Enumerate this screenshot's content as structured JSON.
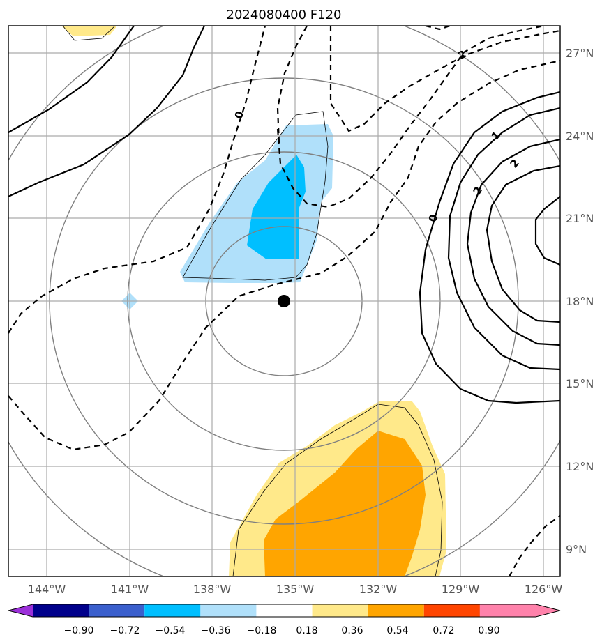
{
  "title": "2024080400 F120",
  "map": {
    "lon_labels": [
      "144°W",
      "141°W",
      "138°W",
      "135°W",
      "132°W",
      "129°W",
      "126°W"
    ],
    "lat_labels": [
      "27°N",
      "24°N",
      "21°N",
      "18°N",
      "15°N",
      "12°N",
      "9°N"
    ],
    "contour_labels": [
      "0",
      "2",
      "1",
      "2",
      "2",
      "0"
    ],
    "center_marker": "storm-center",
    "colors": {
      "light_blue": "#b0e0fa",
      "blue": "#00bfff",
      "light_yellow": "#ffe98a",
      "orange": "#ffa500",
      "grid": "#aaaaaa",
      "range_ring": "#808080"
    }
  },
  "colorbar": {
    "labels": [
      "−0.90",
      "−0.72",
      "−0.54",
      "−0.36",
      "−0.18",
      "0.18",
      "0.36",
      "0.54",
      "0.72",
      "0.90"
    ],
    "colors": [
      "#9b30d9",
      "#00008b",
      "#3a5fcd",
      "#00bfff",
      "#b0e0fa",
      "#ffffff",
      "#ffe98a",
      "#ffa500",
      "#ff4500",
      "#b22222",
      "#ff82ab"
    ]
  }
}
